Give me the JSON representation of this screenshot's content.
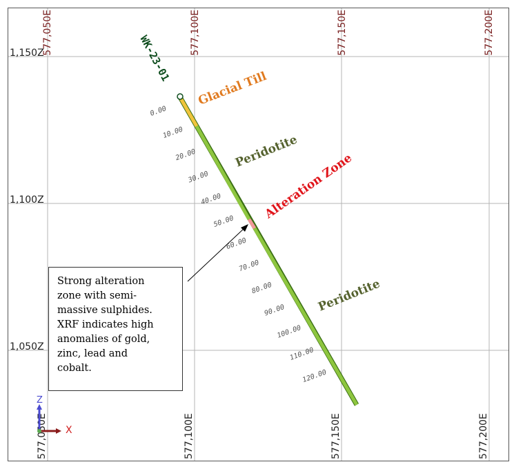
{
  "section": {
    "easting_labels_top": [
      "577,050E",
      "577,100E",
      "577,150E",
      "577,200E"
    ],
    "easting_labels_bottom": [
      "577,050E",
      "577,100E",
      "577,150E",
      "577,200E"
    ],
    "elevation_labels": [
      "1,150Z",
      "1,100Z",
      "1,050Z"
    ],
    "hole_id": "WK-23-01",
    "depth_ticks": [
      "0.00",
      "10.00",
      "20.00",
      "30.00",
      "40.00",
      "50.00",
      "60.00",
      "70.00",
      "80.00",
      "90.00",
      "100.00",
      "110.00",
      "120.00"
    ],
    "units": [
      {
        "label": "Glacial Till",
        "color": "#e07a1f"
      },
      {
        "label": "Peridotite",
        "color": "#55622e"
      },
      {
        "label": "Alteration Zone",
        "color": "#e0151b"
      },
      {
        "label": "Peridotite",
        "color": "#55622e"
      }
    ],
    "axis": {
      "z_label": "Z",
      "x_label": "X"
    },
    "callout_lines": [
      "Strong alteration",
      "zone with semi-",
      "massive sulphides.",
      "XRF indicates high",
      "anomalies of gold,",
      "zinc, lead and",
      "cobalt."
    ],
    "colors": {
      "grid": "#b4b4b4",
      "easting_top_label": "#7a2020",
      "hole_id": "#0e4d1e",
      "till": "#f0c43c",
      "peridotite": "#8ec63f",
      "alteration": "#f29a9a",
      "z_axis": "#4a4ad0",
      "x_axis": "#d02020"
    }
  }
}
